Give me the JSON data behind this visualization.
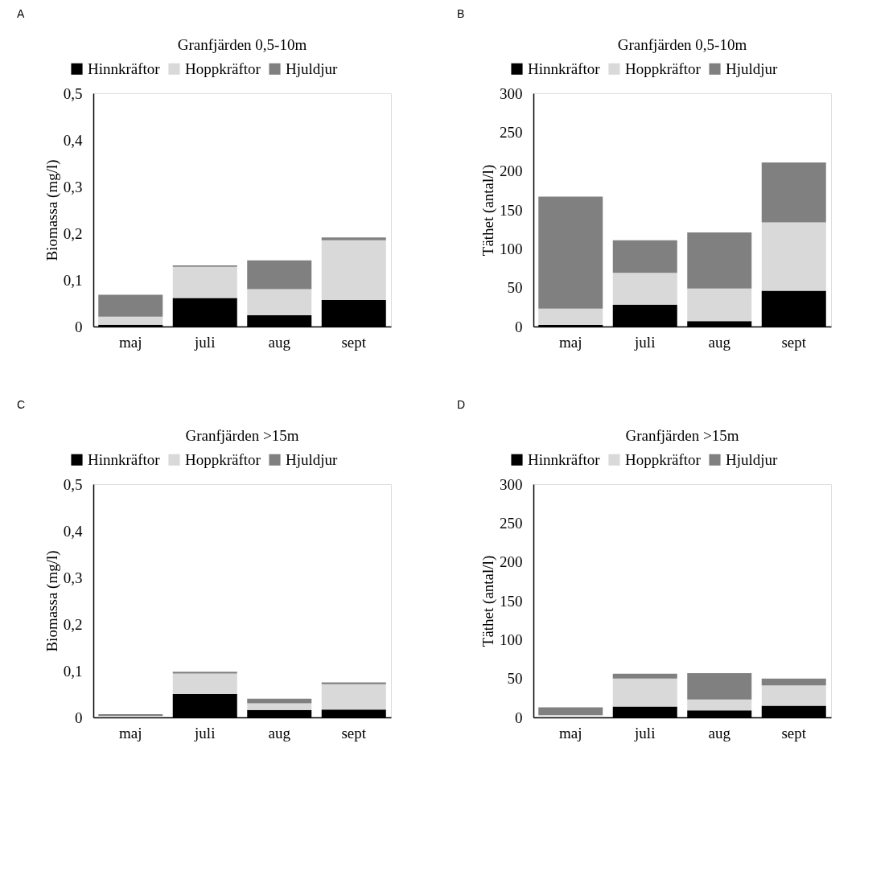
{
  "chart_data": [
    {
      "type": "bar",
      "stacked": true,
      "title": "Granfjärden 0,5-10m",
      "ylabel": "Biomassa (mg/l)",
      "annotations": [
        "A"
      ],
      "legend": "top",
      "grid": false,
      "categories": [
        "maj",
        "juli",
        "aug",
        "sept"
      ],
      "ylim": [
        0,
        0.5
      ],
      "yticks": [
        0,
        {
          "value": 0.1,
          "label": "0,1"
        },
        {
          "value": 0.2,
          "label": "0,2"
        },
        {
          "value": 0.3,
          "label": "0,3"
        },
        {
          "value": 0.4,
          "label": "0,4"
        },
        {
          "value": 0.5,
          "label": "0,5"
        }
      ],
      "series": [
        {
          "name": "Hinnkräftor",
          "color": "#000000",
          "values": [
            0.004,
            0.061,
            0.024,
            0.057
          ]
        },
        {
          "name": "Hoppkräftor",
          "color": "#d9d9d9",
          "values": [
            0.017,
            0.067,
            0.056,
            0.128
          ]
        },
        {
          "name": "Hjuldjur",
          "color": "#808080",
          "values": [
            0.047,
            0.003,
            0.062,
            0.006
          ]
        }
      ]
    },
    {
      "type": "bar",
      "stacked": true,
      "title": "Granfjärden 0,5-10m",
      "ylabel": "Täthet (antal/l)",
      "annotations": [
        "B"
      ],
      "legend": "top",
      "grid": false,
      "categories": [
        "maj",
        "juli",
        "aug",
        "sept"
      ],
      "ylim": [
        0,
        300
      ],
      "yticks": [
        0,
        50,
        100,
        150,
        200,
        250,
        300
      ],
      "series": [
        {
          "name": "Hinnkräftor",
          "color": "#000000",
          "values": [
            2,
            28,
            7,
            46
          ]
        },
        {
          "name": "Hoppkräftor",
          "color": "#d9d9d9",
          "values": [
            21,
            41,
            42,
            88
          ]
        },
        {
          "name": "Hjuldjur",
          "color": "#808080",
          "values": [
            144,
            42,
            72,
            77
          ]
        }
      ]
    },
    {
      "type": "bar",
      "stacked": true,
      "title": "Granfjärden >15m",
      "ylabel": "Biomassa (mg/l)",
      "annotations": [
        "C"
      ],
      "legend": "top",
      "grid": false,
      "categories": [
        "maj",
        "juli",
        "aug",
        "sept"
      ],
      "ylim": [
        0,
        0.5
      ],
      "yticks": [
        0,
        {
          "value": 0.1,
          "label": "0,1"
        },
        {
          "value": 0.2,
          "label": "0,2"
        },
        {
          "value": 0.3,
          "label": "0,3"
        },
        {
          "value": 0.4,
          "label": "0,4"
        },
        {
          "value": 0.5,
          "label": "0,5"
        }
      ],
      "series": [
        {
          "name": "Hinnkräftor",
          "color": "#000000",
          "values": [
            null,
            0.05,
            0.016,
            0.017
          ]
        },
        {
          "name": "Hoppkräftor",
          "color": "#d9d9d9",
          "values": [
            0.003,
            0.044,
            0.014,
            0.054
          ]
        },
        {
          "name": "Hjuldjur",
          "color": "#808080",
          "values": [
            0.004,
            0.004,
            0.01,
            0.004
          ]
        }
      ]
    },
    {
      "type": "bar",
      "stacked": true,
      "title": "Granfjärden >15m",
      "ylabel": "Täthet (antal/l)",
      "annotations": [
        "D"
      ],
      "legend": "top",
      "grid": false,
      "categories": [
        "maj",
        "juli",
        "aug",
        "sept"
      ],
      "ylim": [
        0,
        300
      ],
      "yticks": [
        0,
        50,
        100,
        150,
        200,
        250,
        300
      ],
      "series": [
        {
          "name": "Hinnkräftor",
          "color": "#000000",
          "values": [
            null,
            14,
            9,
            15
          ]
        },
        {
          "name": "Hoppkräftor",
          "color": "#d9d9d9",
          "values": [
            3,
            36,
            14,
            26
          ]
        },
        {
          "name": "Hjuldjur",
          "color": "#808080",
          "values": [
            10,
            6,
            34,
            9
          ]
        }
      ]
    }
  ]
}
